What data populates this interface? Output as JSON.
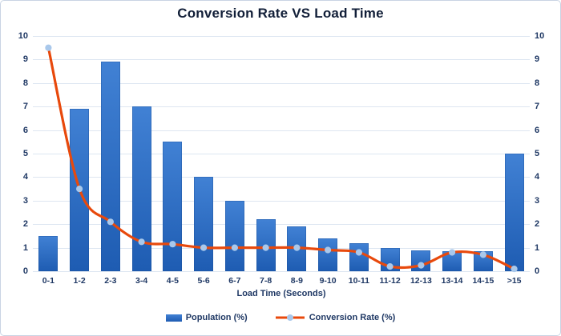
{
  "chart": {
    "title": "Conversion Rate VS Load Time",
    "x_axis_title": "Load Time (Seconds)",
    "legend_population": "Population (%)",
    "legend_conversion": "Conversion Rate (%)"
  },
  "chart_data": {
    "type": "combo",
    "title": "Conversion Rate VS Load Time",
    "xlabel": "Load Time (Seconds)",
    "ylabel": "",
    "ylim": [
      0,
      10
    ],
    "y_ticks": [
      0,
      1,
      2,
      3,
      4,
      5,
      6,
      7,
      8,
      9,
      10
    ],
    "grid": true,
    "legend_position": "bottom",
    "dual_axis": true,
    "categories": [
      "0-1",
      "1-2",
      "2-3",
      "3-4",
      "4-5",
      "5-6",
      "6-7",
      "7-8",
      "8-9",
      "9-10",
      "10-11",
      "11-12",
      "12-13",
      "13-14",
      "14-15",
      ">15"
    ],
    "series": [
      {
        "name": "Population (%)",
        "type": "bar",
        "values": [
          1.5,
          6.9,
          8.9,
          7.0,
          5.5,
          4.0,
          3.0,
          2.2,
          1.9,
          1.4,
          1.2,
          1.0,
          0.9,
          0.85,
          0.85,
          5.0
        ],
        "color_top": "#4181d4",
        "color_bottom": "#1e5cb2"
      },
      {
        "name": "Conversion Rate (%)",
        "type": "line",
        "values": [
          9.5,
          3.5,
          2.1,
          1.25,
          1.15,
          1.0,
          1.0,
          1.0,
          1.0,
          0.9,
          0.8,
          0.2,
          0.25,
          0.8,
          0.7,
          0.1
        ],
        "line_color": "#e8490c",
        "marker_color": "#a9c8eb"
      }
    ]
  },
  "colors": {
    "text": "#1f3864",
    "title": "#121f38",
    "grid": "#dde6f1",
    "border": "#c9d4e4",
    "background": "#ffffff"
  }
}
